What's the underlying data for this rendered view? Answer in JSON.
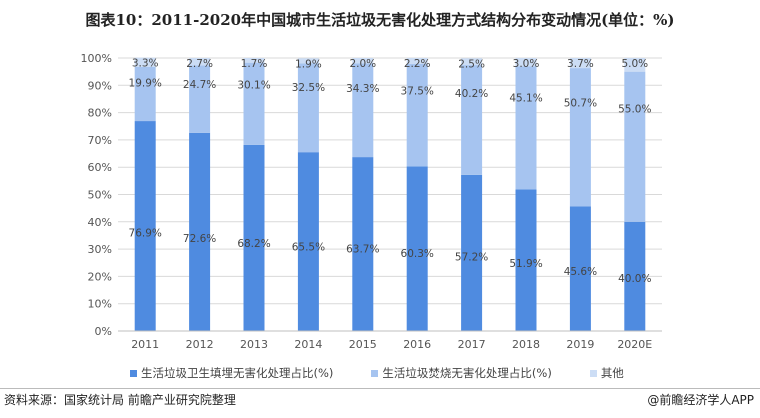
{
  "title": "图表10：2011-2020年中国城市生活垃圾无害化处理方式结构分布变动情况(单位：%)",
  "chart_data": {
    "type": "bar",
    "stacked": true,
    "categories": [
      "2011",
      "2012",
      "2013",
      "2014",
      "2015",
      "2016",
      "2017",
      "2018",
      "2019",
      "2020E"
    ],
    "series": [
      {
        "name": "生活垃圾卫生填埋无害化处理占比(%)",
        "color": "#4F8BE0",
        "values": [
          76.9,
          72.6,
          68.2,
          65.5,
          63.7,
          60.3,
          57.2,
          51.9,
          45.6,
          40.0
        ]
      },
      {
        "name": "生活垃圾焚烧无害化处理占比(%)",
        "color": "#A6C4F0",
        "values": [
          19.9,
          24.7,
          30.1,
          32.5,
          34.3,
          37.5,
          40.2,
          45.1,
          50.7,
          55.0
        ]
      },
      {
        "name": "其他",
        "color": "#CCDDF5",
        "values": [
          3.3,
          2.7,
          1.7,
          1.9,
          2.0,
          2.2,
          2.5,
          3.0,
          3.7,
          5.0
        ]
      }
    ],
    "data_labels": {
      "series0": [
        "76.9%",
        "72.6%",
        "68.2%",
        "65.5%",
        "63.7%",
        "60.3%",
        "57.2%",
        "51.9%",
        "45.6%",
        "40.0%"
      ],
      "series1": [
        "19.9%",
        "24.7%",
        "30.1%",
        "32.5%",
        "34.3%",
        "37.5%",
        "40.2%",
        "45.1%",
        "50.7%",
        "55.0%"
      ],
      "series2": [
        "3.3%",
        "2.7%",
        "1.7%",
        "1.9%",
        "2.0%",
        "2.2%",
        "2.5%",
        "3.0%",
        "3.7%",
        "5.0%"
      ]
    },
    "yticks": [
      "0%",
      "10%",
      "20%",
      "30%",
      "40%",
      "50%",
      "60%",
      "70%",
      "80%",
      "90%",
      "100%"
    ],
    "ylim": [
      0,
      100
    ],
    "grid": true,
    "legend": "bottom"
  },
  "source": "资料来源：国家统计局 前瞻产业研究院整理",
  "credit": "@前瞻经济学人APP"
}
